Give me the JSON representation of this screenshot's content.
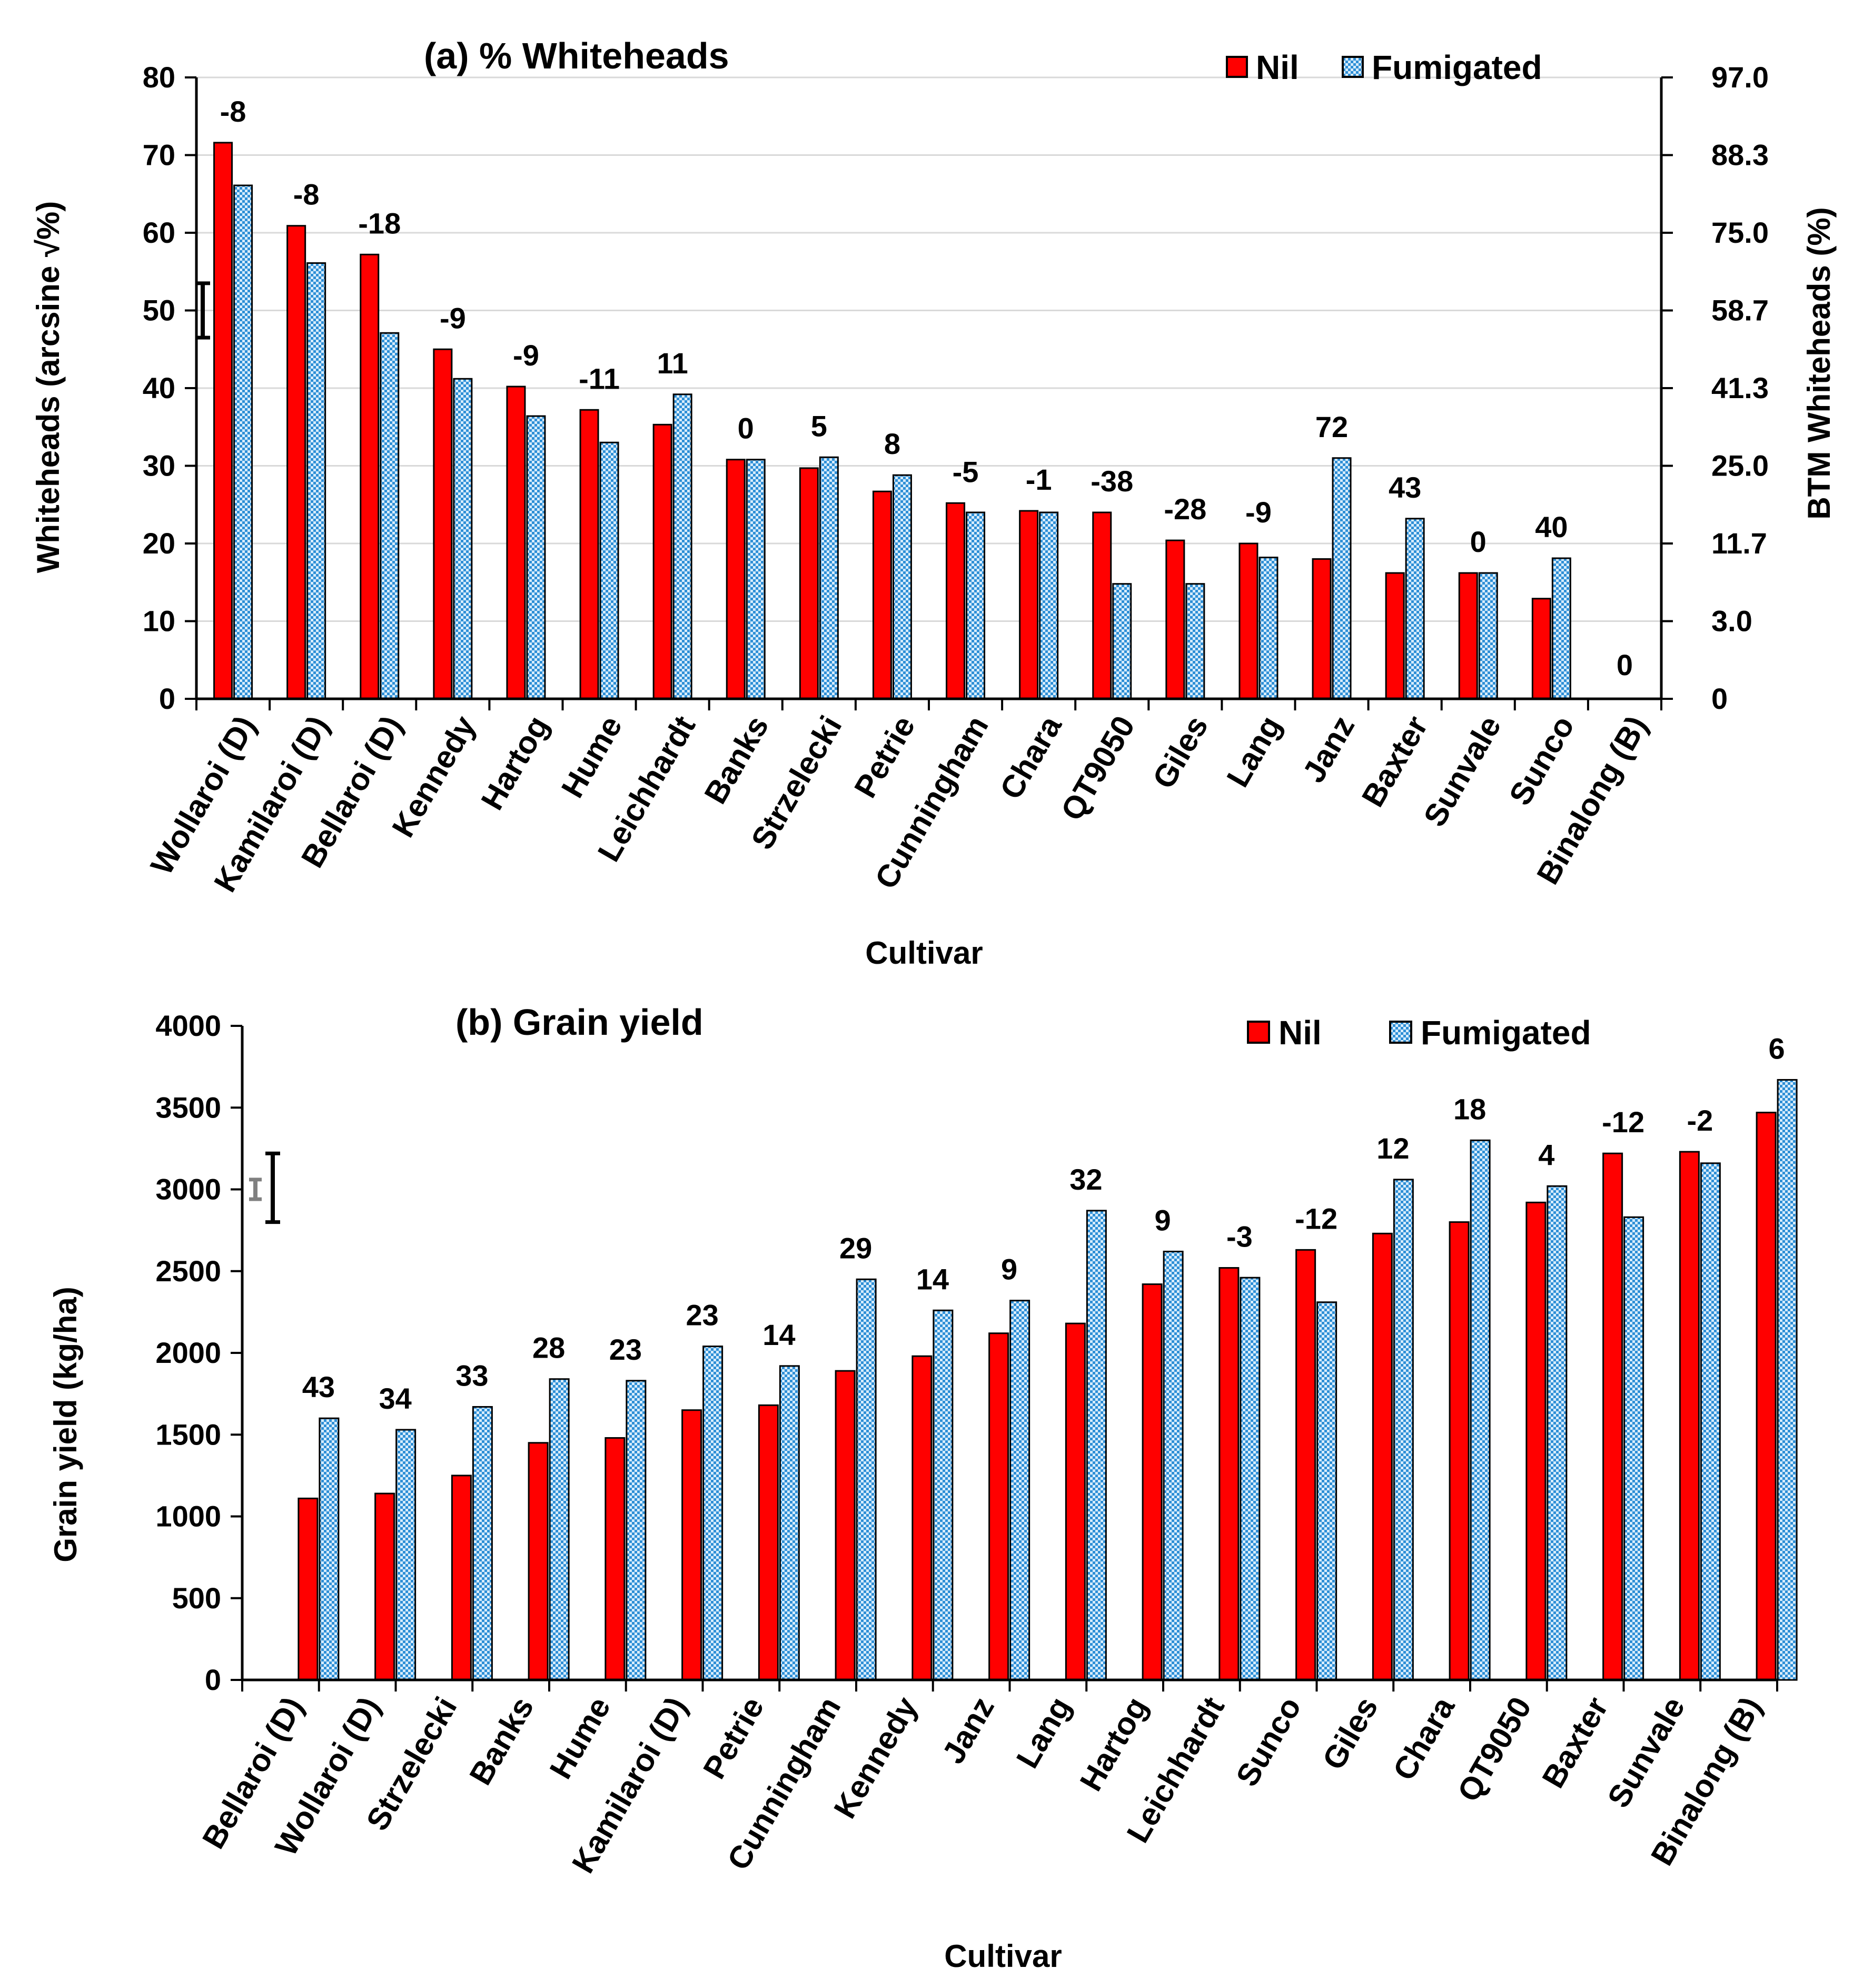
{
  "colors": {
    "nil": "#ff0000",
    "fumigated_base": "#d7ecfb",
    "fumigated_pattern": "#2e8fd6",
    "axis": "#000000",
    "grid": "#d9d9d9"
  },
  "chart_data": [
    {
      "type": "bar",
      "title": "(a) % Whiteheads",
      "xlabel": "Cultivar",
      "ylabel": "Whiteheads  (arcsine √%)",
      "ylabel_right": "BTM Whiteheads (%)",
      "ylim": [
        0,
        80
      ],
      "yticks": [
        0,
        10,
        20,
        30,
        40,
        50,
        60,
        70,
        80
      ],
      "right_ticks": [
        "0",
        "3.0",
        "11.7",
        "25.0",
        "41.3",
        "58.7",
        "75.0",
        "88.3",
        "97.0"
      ],
      "grid": true,
      "legend": "top-right",
      "categories": [
        "Wollaroi (D)",
        "Kamilaroi (D)",
        "Bellaroi (D)",
        "Kennedy",
        "Hartog",
        "Hume",
        "Leichhardt",
        "Banks",
        "Strzelecki",
        "Petrie",
        "Cunningham",
        "Chara",
        "QT9050",
        "Giles",
        "Lang",
        "Janz",
        "Baxter",
        "Sunvale",
        "Sunco",
        "Binalong (B)"
      ],
      "series": [
        {
          "name": "Nil",
          "values": [
            71.6,
            60.9,
            57.2,
            45.0,
            40.2,
            37.2,
            35.3,
            30.8,
            29.7,
            26.7,
            25.2,
            24.2,
            24.0,
            20.4,
            20.0,
            18.0,
            16.2,
            16.2,
            12.9,
            0
          ]
        },
        {
          "name": "Fumigated",
          "values": [
            66.1,
            56.1,
            47.1,
            41.2,
            36.4,
            33.0,
            39.2,
            30.8,
            31.1,
            28.8,
            24.0,
            24.0,
            14.8,
            14.8,
            18.2,
            31.0,
            23.2,
            16.2,
            18.1,
            0
          ]
        }
      ],
      "annotations": [
        "-8",
        "-8",
        "-18",
        "-9",
        "-9",
        "-11",
        "11",
        "0",
        "5",
        "8",
        "-5",
        "-1",
        "-38",
        "-28",
        "-9",
        "72",
        "43",
        "0",
        "40",
        "0"
      ],
      "error_bar": {
        "low": 46.5,
        "high": 53.5
      }
    },
    {
      "type": "bar",
      "title": "(b) Grain yield",
      "xlabel": "Cultivar",
      "ylabel": "Grain yield  (kg/ha)",
      "ylim": [
        0,
        4000
      ],
      "yticks": [
        0,
        500,
        1000,
        1500,
        2000,
        2500,
        3000,
        3500,
        4000
      ],
      "grid": false,
      "legend": "top-right",
      "categories": [
        "Bellaroi (D)",
        "Wollaroi (D)",
        "Strzelecki",
        "Banks",
        "Hume",
        "Kamilaroi (D)",
        "Petrie",
        "Cunningham",
        "Kennedy",
        "Janz",
        "Lang",
        "Hartog",
        "Leichhardt",
        "Sunco",
        "Giles",
        "Chara",
        "QT9050",
        "Baxter",
        "Sunvale",
        "Binalong (B)"
      ],
      "series": [
        {
          "name": "Nil",
          "values": [
            1110,
            1140,
            1250,
            1450,
            1480,
            1650,
            1680,
            1890,
            1980,
            2120,
            2180,
            2420,
            2520,
            2630,
            2730,
            2800,
            2920,
            3220,
            3230,
            3470
          ]
        },
        {
          "name": "Fumigated",
          "values": [
            1600,
            1530,
            1670,
            1840,
            1830,
            2040,
            1920,
            2450,
            2260,
            2320,
            2870,
            2620,
            2460,
            2310,
            3060,
            3300,
            3020,
            2830,
            3160,
            3670
          ]
        }
      ],
      "annotations": [
        "43",
        "34",
        "33",
        "28",
        "23",
        "23",
        "14",
        "29",
        "14",
        "9",
        "32",
        "9",
        "-3",
        "-12",
        "12",
        "18",
        "4",
        "-12",
        "-2",
        "6"
      ],
      "error_bar": {
        "low": 2800,
        "high": 3220
      },
      "error_bar_small": {
        "low": 2940,
        "high": 3060
      }
    }
  ]
}
